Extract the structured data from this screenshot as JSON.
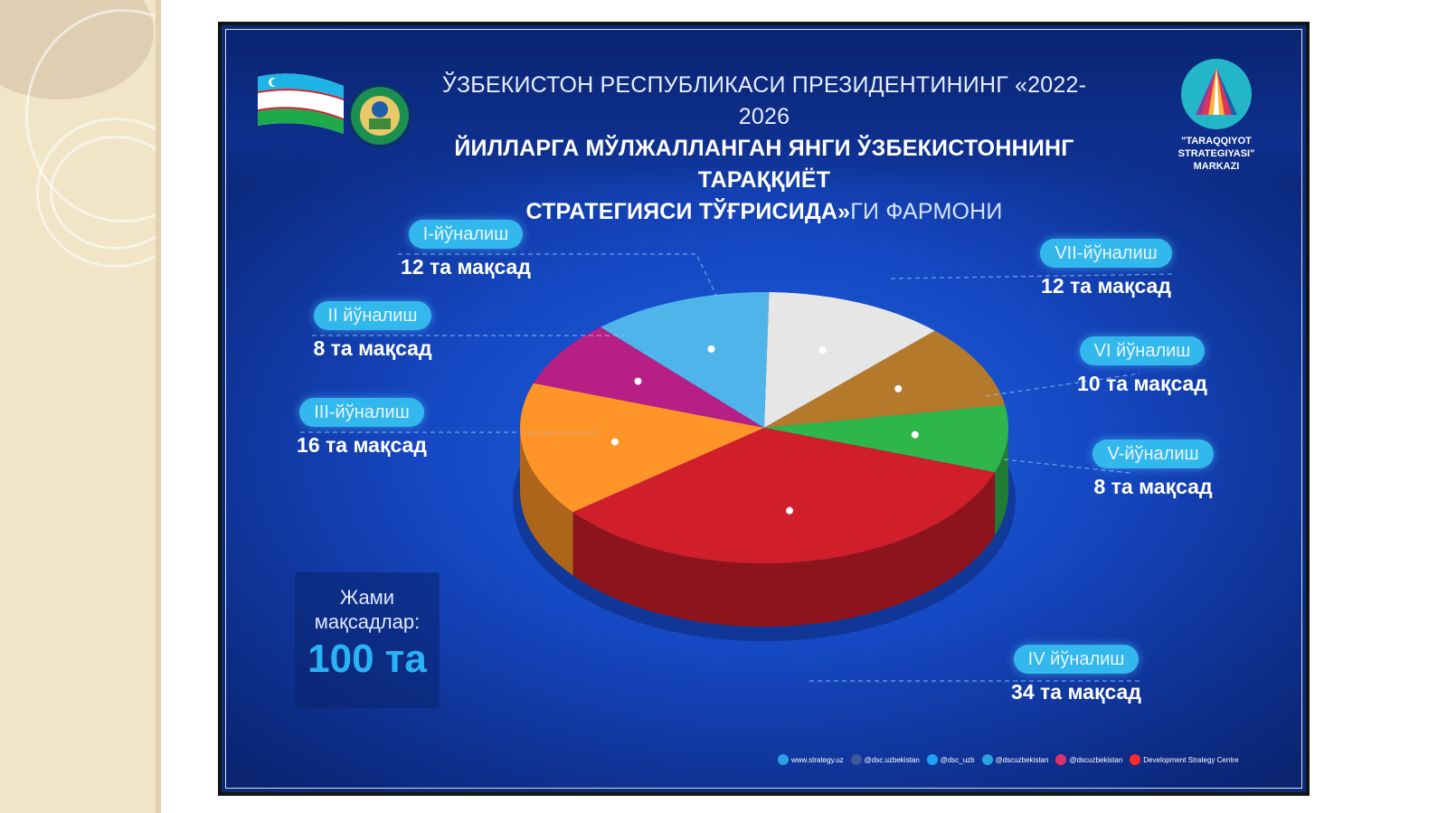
{
  "header": {
    "title_line1": "ЎЗБЕКИСТОН РЕСПУБЛИКАСИ ПРЕЗИДЕНТИНИНГ «2022-2026",
    "title_line2": "ЙИЛЛАРГА МЎЛЖАЛЛАНГАН ЯНГИ ЎЗБЕКИСТОННИНГ ТАРАҚҚИЁТ",
    "title_line3_bold": "СТРАТЕГИЯСИ ТЎҒРИСИДА»",
    "title_line3_rest": "ГИ ФАРМОНИ",
    "logo_line1": "\"TARAQQIYOT STRATEGIYASI\"",
    "logo_line2": "MARKAZI"
  },
  "colors": {
    "background": "#1548c2",
    "pill": "#33b8ee",
    "total_value": "#29b3f5"
  },
  "chart_data": {
    "type": "pie",
    "total_label": "Жами мақсадлар:",
    "total_value": "100 та",
    "series": [
      {
        "name": "I-йўналиш",
        "value": 12,
        "label": "12 та мақсад",
        "color": "#4fb4ea"
      },
      {
        "name": "II йўналиш",
        "value": 8,
        "label": "8 та мақсад",
        "color": "#b81f86"
      },
      {
        "name": "III-йўналиш",
        "value": 16,
        "label": "16 та мақсад",
        "color": "#ff9428"
      },
      {
        "name": "IV йўналиш",
        "value": 34,
        "label": "34 та мақсад",
        "color": "#d01e2a"
      },
      {
        "name": "V-йўналиш",
        "value": 8,
        "label": "8 та мақсад",
        "color": "#2eb64a"
      },
      {
        "name": "VI йўналиш",
        "value": 10,
        "label": "10 та мақсад",
        "color": "#b5792c"
      },
      {
        "name": "VII-йўналиш",
        "value": 12,
        "label": "12 та мақсад",
        "color": "#e6e6e6"
      }
    ]
  },
  "footer": {
    "items": [
      {
        "icon": "globe-icon",
        "text": "www.strategy.uz",
        "color": "#2ea0e8"
      },
      {
        "icon": "facebook-icon",
        "text": "@dsc.uzbekistan",
        "color": "#3b5998"
      },
      {
        "icon": "twitter-icon",
        "text": "@dsc_uzb",
        "color": "#1da1f2"
      },
      {
        "icon": "telegram-icon",
        "text": "@dscuzbekistan",
        "color": "#2aa3e0"
      },
      {
        "icon": "instagram-icon",
        "text": "@dscuzbekistan",
        "color": "#e1306c"
      },
      {
        "icon": "youtube-icon",
        "text": "Development Strategy Centre",
        "color": "#ff2a2a"
      }
    ]
  }
}
